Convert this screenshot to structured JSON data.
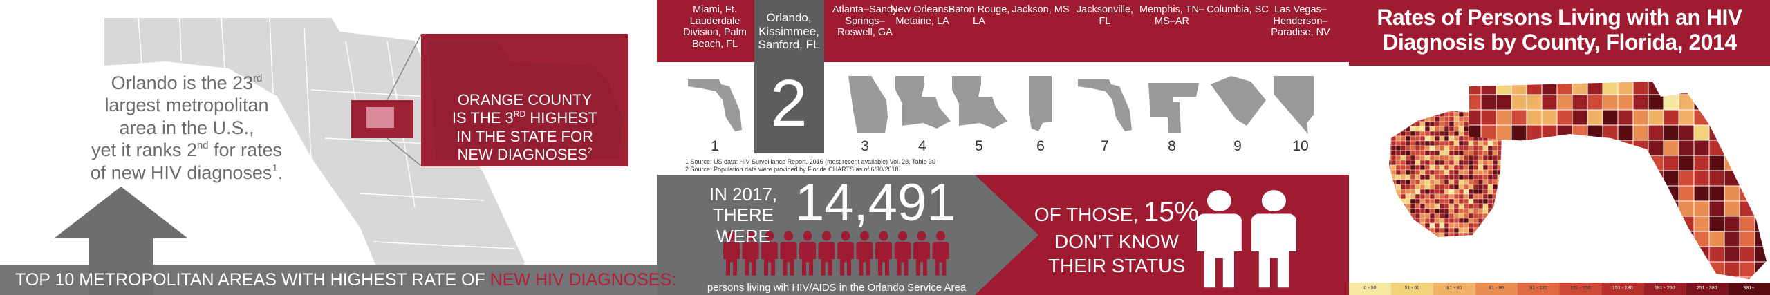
{
  "left": {
    "intro": [
      [
        {
          "t": "Orlando is the 23"
        },
        {
          "sup": "rd"
        }
      ],
      [
        {
          "t": "largest metropolitan"
        }
      ],
      [
        {
          "t": "area in the U.S.,"
        }
      ],
      [
        {
          "t": "yet it ranks 2"
        },
        {
          "sup": "nd"
        },
        {
          "t": " for rates"
        }
      ],
      [
        {
          "t": "of new HIV diagnoses"
        },
        {
          "sup": "1"
        },
        {
          "t": "."
        }
      ]
    ],
    "callout": [
      [
        {
          "t": "ORANGE COUNTY"
        }
      ],
      [
        {
          "t": "IS THE 3"
        },
        {
          "sup": "RD"
        },
        {
          "t": " HIGHEST"
        }
      ],
      [
        {
          "t": "IN THE STATE FOR"
        }
      ],
      [
        {
          "t": "NEW DIAGNOSES"
        },
        {
          "sup": "2"
        }
      ]
    ],
    "banner": {
      "text": "TOP 10 METROPOLITAN AREAS WITH HIGHEST RATE OF ",
      "highlight": "NEW HIV DIAGNOSES:"
    }
  },
  "metros": [
    {
      "name": "Miami, Ft. Lauderdale Division, Palm Beach, FL",
      "rank": "1"
    },
    {
      "name": "Orlando, Kissimmee, Sanford, FL",
      "rank": "2",
      "highlight": true
    },
    {
      "name": "Atlanta–Sandy Springs–Roswell, GA",
      "rank": "3"
    },
    {
      "name": "New Orleans–Metairie, LA",
      "rank": "4"
    },
    {
      "name": "Baton Rouge, LA",
      "rank": "5"
    },
    {
      "name": "Jackson, MS",
      "rank": "6"
    },
    {
      "name": "Jacksonville, FL",
      "rank": "7"
    },
    {
      "name": "Memphis, TN–MS–AR",
      "rank": "8"
    },
    {
      "name": "Columbia, SC",
      "rank": "9"
    },
    {
      "name": "Las Vegas–Henderson–Paradise, NV",
      "rank": "10"
    }
  ],
  "footnotes": [
    "1 Source: US data: HIV Surveillance Report, 2016 (most recent available) Vol. 28, Table 30",
    "2 Source: Population data were provided by Florida CHARTS as of 6/30/2018."
  ],
  "stats": {
    "year": "IN 2017,",
    "lead": "THERE WERE",
    "count": "14,491",
    "caption": "persons living wih HIV/AIDS in the Orlando Service Area"
  },
  "unaware": {
    "lead": "OF THOSE, ",
    "percent": "15%",
    "line2": "DON’T KNOW",
    "line3": "THEIR STATUS"
  },
  "map": {
    "title": "Rates of Persons Living with an HIV Diagnosis by County, Florida, 2014",
    "legend": [
      "0 - 50",
      "51 - 60",
      "61 - 80",
      "81 - 90",
      "91 - 120",
      "121 - 150",
      "151 - 180",
      "181 - 250",
      "251 - 380",
      "381+"
    ]
  }
}
